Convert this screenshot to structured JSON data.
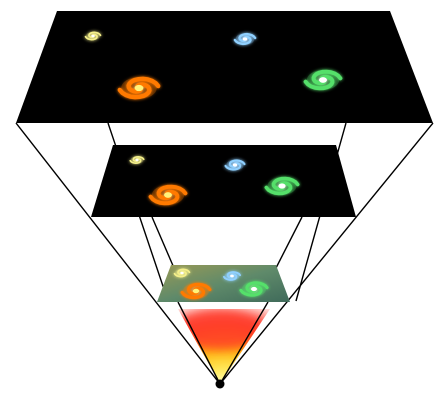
{
  "diagram": {
    "colors": {
      "background": "#ffffff",
      "space": "#000000",
      "outline": "#000000",
      "early_universe_tint": "#6f8f55",
      "bang_core": "#fff46a",
      "bang_mid": "#ffb300",
      "bang_outer": "#ff3a2a"
    },
    "layers": [
      {
        "stage": "present",
        "galaxies": [
          {
            "icon": "spiral-galaxy-icon",
            "color": "#f5f08a",
            "core": "#ffffff",
            "scale": 0.55
          },
          {
            "icon": "spiral-galaxy-icon",
            "color": "#8fd0ff",
            "core": "#ffffff",
            "scale": 0.75
          },
          {
            "icon": "spiral-galaxy-icon",
            "color": "#ff7a00",
            "core": "#fff27a",
            "scale": 1.1
          },
          {
            "icon": "spiral-galaxy-icon",
            "color": "#55e06a",
            "core": "#ffffff",
            "scale": 1.0
          }
        ]
      },
      {
        "stage": "intermediate",
        "galaxies": [
          {
            "icon": "spiral-galaxy-icon",
            "color": "#f5f08a",
            "core": "#ffffff",
            "scale": 0.5
          },
          {
            "icon": "spiral-galaxy-icon",
            "color": "#8fd0ff",
            "core": "#ffffff",
            "scale": 0.7
          },
          {
            "icon": "spiral-galaxy-icon",
            "color": "#ff7a00",
            "core": "#fff27a",
            "scale": 1.0
          },
          {
            "icon": "spiral-galaxy-icon",
            "color": "#55e06a",
            "core": "#ffffff",
            "scale": 0.9
          }
        ]
      },
      {
        "stage": "early",
        "galaxies": [
          {
            "icon": "spiral-galaxy-icon",
            "color": "#f5f08a",
            "core": "#ffffff",
            "scale": 0.55
          },
          {
            "icon": "spiral-galaxy-icon",
            "color": "#8fd0ff",
            "core": "#ffffff",
            "scale": 0.6
          },
          {
            "icon": "spiral-galaxy-icon",
            "color": "#ff7a00",
            "core": "#fff27a",
            "scale": 0.8
          },
          {
            "icon": "spiral-galaxy-icon",
            "color": "#55e06a",
            "core": "#ffffff",
            "scale": 0.75
          }
        ]
      }
    ],
    "origin": {
      "icon": "big-bang-point-icon"
    }
  }
}
